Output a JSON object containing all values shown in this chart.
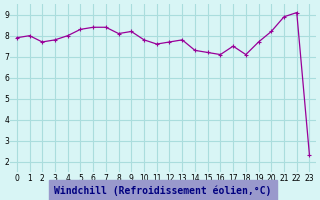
{
  "x": [
    0,
    1,
    2,
    3,
    4,
    5,
    6,
    7,
    8,
    9,
    10,
    11,
    12,
    13,
    14,
    15,
    16,
    17,
    18,
    19,
    20,
    21,
    22,
    23
  ],
  "y": [
    7.9,
    8.0,
    7.7,
    7.8,
    8.0,
    8.3,
    8.4,
    8.4,
    8.1,
    8.2,
    7.8,
    7.6,
    7.7,
    7.8,
    7.3,
    7.2,
    7.1,
    7.5,
    7.1,
    7.7,
    8.2,
    8.9,
    9.1,
    2.3
  ],
  "line_color": "#990099",
  "marker": "+",
  "bg_color": "#d8f5f5",
  "grid_color": "#aadddd",
  "xlabel": "Windchill (Refroidissement éolien,°C)",
  "xlabel_color": "#000080",
  "xlabel_bg": "#9999cc",
  "tick_labels": [
    "0",
    "1",
    "2",
    "3",
    "4",
    "5",
    "6",
    "7",
    "8",
    "9",
    "10",
    "11",
    "12",
    "13",
    "14",
    "15",
    "16",
    "17",
    "18",
    "19",
    "20",
    "21",
    "22",
    "23"
  ],
  "yticks": [
    2,
    3,
    4,
    5,
    6,
    7,
    8,
    9
  ],
  "ylim": [
    1.5,
    9.5
  ],
  "xlim": [
    -0.5,
    23.5
  ],
  "axis_label_color": "#333333",
  "tick_fontsize": 5.5,
  "xlabel_fontsize": 7
}
